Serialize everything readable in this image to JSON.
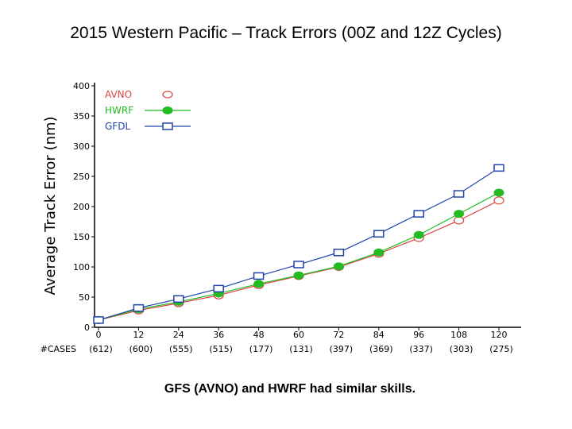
{
  "page": {
    "title": "2015 Western Pacific – Track Errors   (00Z and 12Z Cycles)",
    "caption": "GFS (AVNO) and HWRF had similar skills."
  },
  "chart_data": {
    "type": "line",
    "title": "2015 Western Pacific – Track Errors   (00Z and 12Z Cycles)",
    "xlabel": "",
    "ylabel": "Average Track Error (nm)",
    "x_ticks": [
      "0",
      "12",
      "24",
      "36",
      "48",
      "60",
      "72",
      "84",
      "96",
      "108",
      "120"
    ],
    "case_prefix": "#CASES",
    "cases": [
      "(612)",
      "(600)",
      "(555)",
      "(515)",
      "(177)",
      "(131)",
      "(397)",
      "(369)",
      "(337)",
      "(303)",
      "(275)"
    ],
    "y_ticks": [
      "0",
      "50",
      "100",
      "150",
      "200",
      "250",
      "300",
      "350",
      "400"
    ],
    "ylim": [
      0,
      400
    ],
    "grid": false,
    "legend_position": "top-left",
    "series": [
      {
        "name": "AVNO",
        "color": "#dd4444",
        "marker": "open-circle",
        "values": [
          12,
          28,
          40,
          53,
          70,
          85,
          100,
          122,
          148,
          177,
          210
        ]
      },
      {
        "name": "HWRF",
        "color": "#22bb22",
        "marker": "filled-circle",
        "values": [
          12,
          30,
          42,
          56,
          72,
          86,
          101,
          124,
          153,
          188,
          223
        ]
      },
      {
        "name": "GFDL",
        "color": "#2244aa",
        "marker": "open-square",
        "values": [
          12,
          32,
          47,
          64,
          85,
          104,
          124,
          155,
          188,
          221,
          264
        ]
      }
    ]
  }
}
